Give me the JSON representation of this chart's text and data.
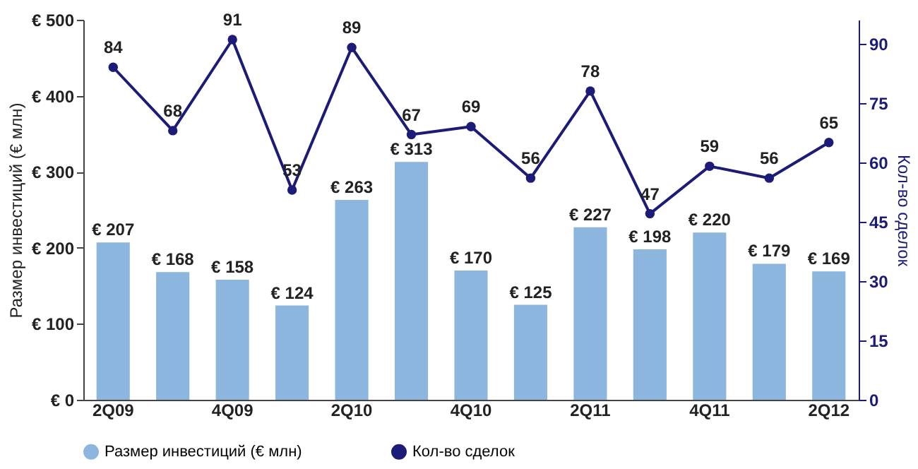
{
  "chart_data": {
    "type": "bar",
    "ylabel": "Размер инвестиций (€ млн)",
    "y2label": "Кол-во сделок",
    "categories": [
      "2Q09",
      null,
      "4Q09",
      null,
      "2Q10",
      null,
      "4Q10",
      null,
      "2Q11",
      null,
      "4Q11",
      null,
      "2Q12"
    ],
    "series": [
      {
        "name": "Размер инвестиций (€ млн)",
        "color": "#8db6de",
        "values": [
          207,
          168,
          158,
          124,
          263,
          313,
          170,
          125,
          227,
          198,
          220,
          179,
          169
        ],
        "value_labels": [
          "€ 207",
          "€ 168",
          "€ 158",
          "€ 124",
          "€ 263",
          "€ 313",
          "€ 170",
          "€ 125",
          "€ 227",
          "€ 198",
          "€ 220",
          "€ 179",
          "€ 169"
        ]
      },
      {
        "name": "Кол-во сделок",
        "type": "line",
        "axis": "y2",
        "color": "#1c1c78",
        "marker": "circle",
        "data_labels": true,
        "values": [
          84,
          68,
          91,
          53,
          89,
          67,
          69,
          56,
          78,
          47,
          59,
          56,
          65
        ]
      }
    ],
    "ylim": [
      0,
      500
    ],
    "yticks": [
      {
        "value": 0,
        "label": "€ 0"
      },
      {
        "value": 100,
        "label": "€ 100"
      },
      {
        "value": 200,
        "label": "€ 200"
      },
      {
        "value": 300,
        "label": "€ 300"
      },
      {
        "value": 400,
        "label": "€ 400"
      },
      {
        "value": 500,
        "label": "€ 500"
      }
    ],
    "y2lim": [
      0,
      96
    ],
    "y2ticks": [
      0,
      15,
      30,
      45,
      60,
      75,
      90
    ],
    "grid": false,
    "legend": "bottom"
  }
}
